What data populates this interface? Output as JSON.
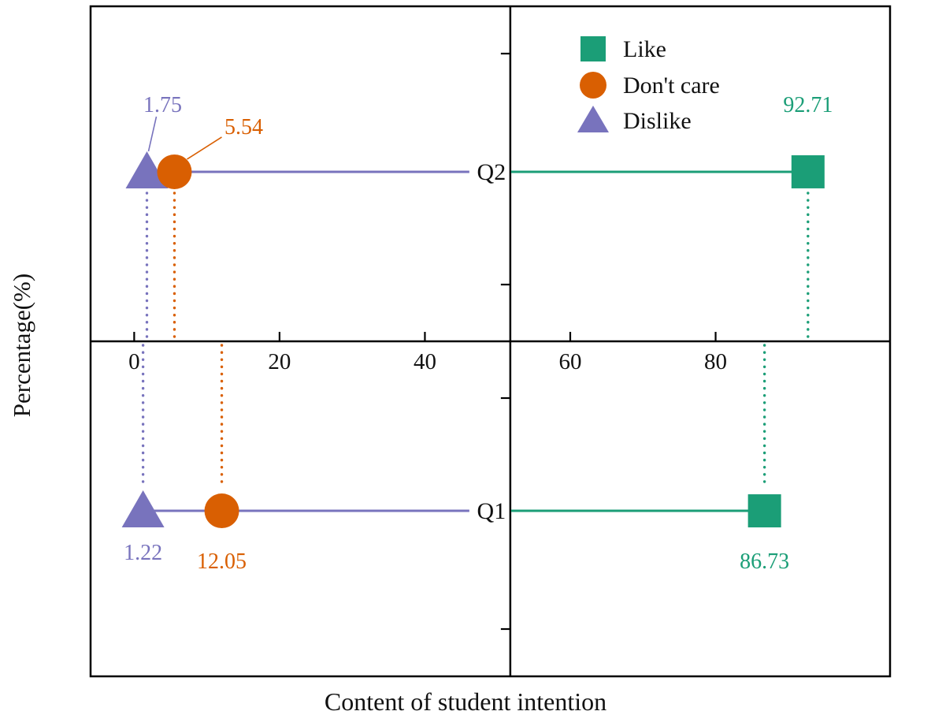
{
  "chart_data": {
    "type": "scatter",
    "variant": "dumbbell-dot-plot",
    "title": "",
    "xlabel": "Content of student intention",
    "ylabel": "Percentage(%)",
    "x_ticks": [
      "0",
      "20",
      "40",
      "60",
      "80"
    ],
    "x_tick_values": [
      0,
      20,
      40,
      60,
      80
    ],
    "xlim": [
      -6,
      104
    ],
    "grid": "off",
    "categories": [
      "Q2",
      "Q1"
    ],
    "series": [
      {
        "name": "Like",
        "marker": "square",
        "color": "#1b9e77",
        "values": [
          92.71,
          86.73
        ],
        "value_labels": [
          "92.71",
          "86.73"
        ]
      },
      {
        "name": "Don't care",
        "marker": "circle",
        "color": "#d95f02",
        "values": [
          5.54,
          12.05
        ],
        "value_labels": [
          "5.54",
          "12.05"
        ]
      },
      {
        "name": "Dislike",
        "marker": "triangle",
        "color": "#7873bd",
        "values": [
          1.75,
          1.22
        ],
        "value_labels": [
          "1.75",
          "1.22"
        ]
      }
    ],
    "legend": {
      "position": "top-right-of-center",
      "entries": [
        "Like",
        "Don't care",
        "Dislike"
      ]
    },
    "axis_color": "#000000",
    "text_color": "#111111"
  }
}
